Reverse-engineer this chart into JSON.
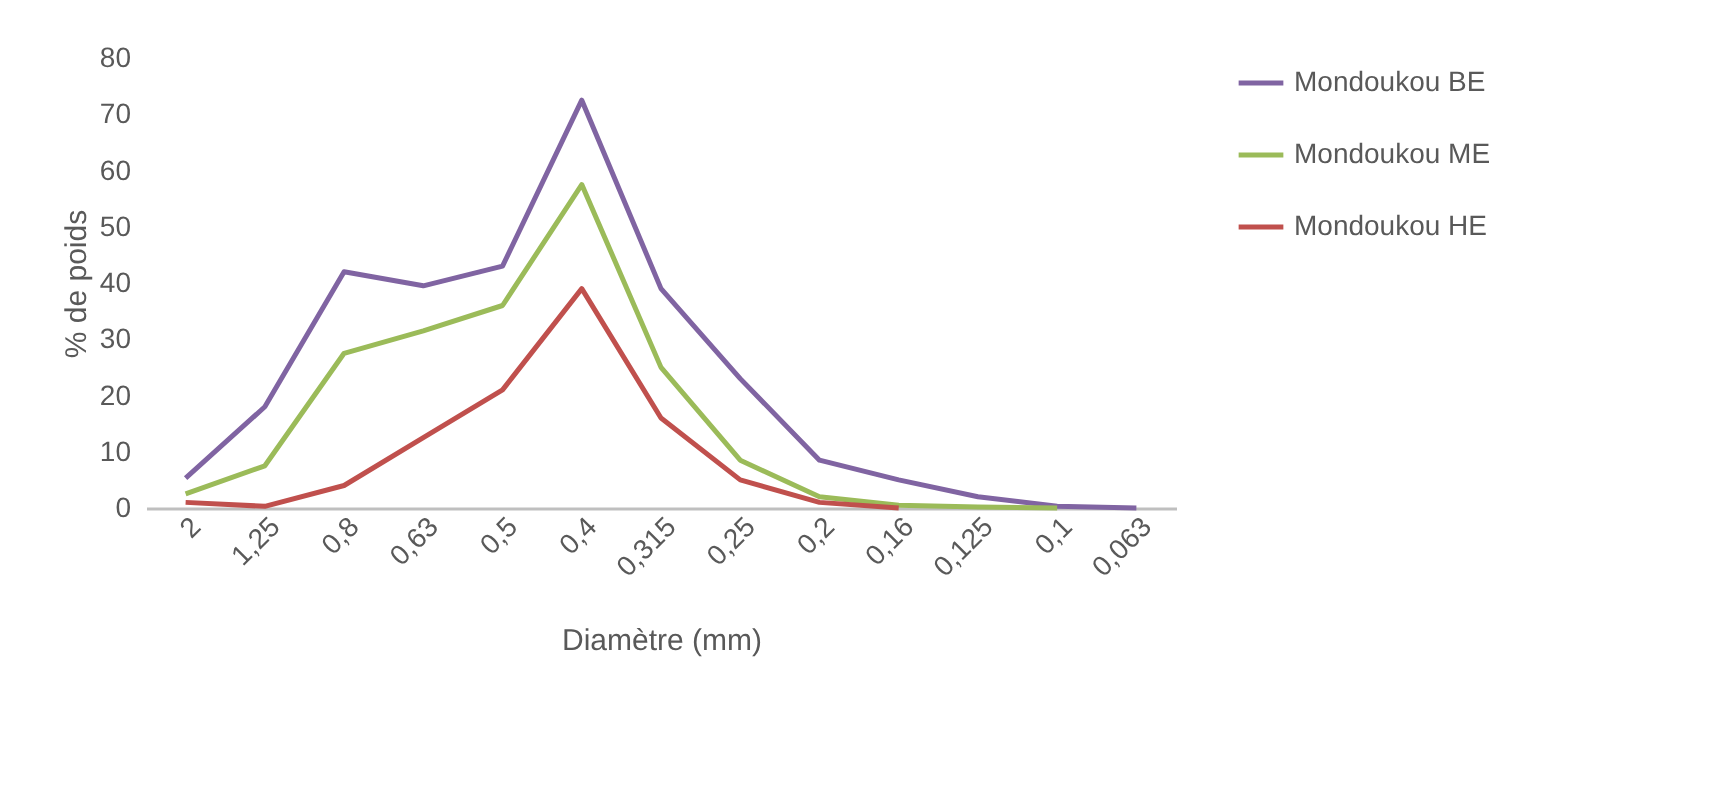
{
  "chart_data": {
    "type": "line",
    "xlabel": "Diamètre (mm)",
    "ylabel": "% de poids",
    "categories": [
      "2",
      "1,25",
      "0,8",
      "0,63",
      "0,5",
      "0,4",
      "0,315",
      "0,25",
      "0,2",
      "0,16",
      "0,125",
      "0,1",
      "0,063"
    ],
    "series": [
      {
        "name": "Mondoukou BE",
        "color": "#8064a2",
        "values": [
          5.3,
          18,
          42,
          39.5,
          43,
          72.5,
          39,
          23,
          8.5,
          5,
          2,
          0.3,
          0
        ]
      },
      {
        "name": "Mondoukou ME",
        "color": "#9bbb59",
        "values": [
          2.5,
          7.5,
          27.5,
          31.5,
          36,
          57.5,
          25,
          8.5,
          2,
          0.5,
          0.2,
          0,
          null
        ]
      },
      {
        "name": "Mondoukou HE",
        "color": "#c0504d",
        "values": [
          1,
          0.3,
          4,
          12.5,
          21,
          39,
          16,
          5,
          1,
          0,
          null,
          null,
          null
        ]
      }
    ],
    "ylim": [
      0,
      80
    ],
    "yticks": [
      0,
      10,
      20,
      30,
      40,
      50,
      60,
      70,
      80
    ],
    "grid": false,
    "legend": "right",
    "line_style": "solid",
    "marker": "none"
  }
}
